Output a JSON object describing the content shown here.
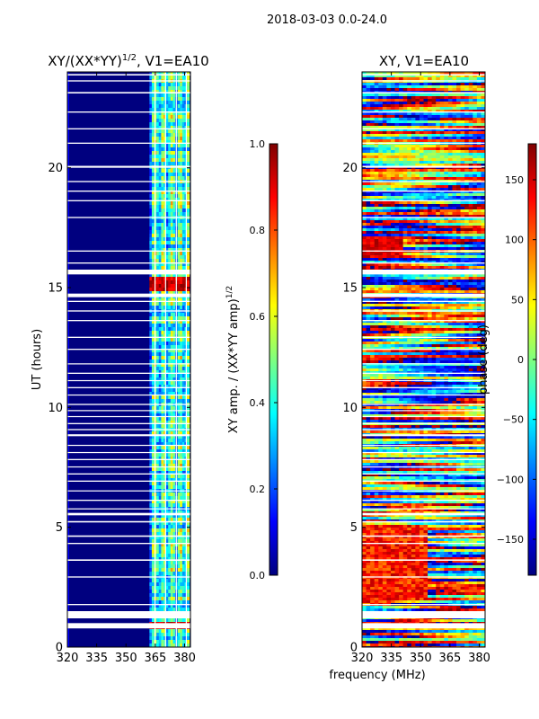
{
  "suptitle": "2018-03-03 0.0-24.0",
  "colors": {
    "jet": [
      "#00007f",
      "#0000ff",
      "#007fff",
      "#00ffff",
      "#7fff7f",
      "#ffff00",
      "#ff7f00",
      "#ff0000",
      "#7f0000"
    ],
    "gap": "#ffffff"
  },
  "chart_data": [
    {
      "type": "heatmap",
      "title_main": "XY/(XX*YY)",
      "title_sup": "1/2",
      "title_rest": ", V1=EA10",
      "xlabel": "",
      "ylabel": "UT (hours)",
      "xlim": [
        320,
        383
      ],
      "ylim": [
        0,
        24
      ],
      "xticks": [
        320,
        335,
        350,
        365,
        380
      ],
      "yticks": [
        0,
        5,
        10,
        15,
        20
      ],
      "description_values": "normalized XY amplitude: ~0.0-0.1 below 360 MHz, bright 0.3-1.0 stripes between 360-380 MHz; flagged rows near 1.2-1.5 h and 14.8-15.5 h",
      "colorbar": {
        "label_main": "XY amp. / (XX*YY amp)",
        "label_sup": "1/2",
        "range": [
          0.0,
          1.0
        ],
        "ticks": [
          0.0,
          0.2,
          0.4,
          0.6,
          0.8,
          1.0
        ],
        "tick_labels": [
          "0.0",
          "0.2",
          "0.4",
          "0.6",
          "0.8",
          "1.0"
        ]
      }
    },
    {
      "type": "heatmap",
      "title": "XY, V1=EA10",
      "xlabel": "frequency (MHz)",
      "ylabel": "",
      "xlim": [
        320,
        383
      ],
      "ylim": [
        0,
        24
      ],
      "xticks": [
        320,
        335,
        350,
        365,
        380
      ],
      "yticks": [
        0,
        5,
        10,
        15,
        20
      ],
      "colorbar": {
        "label": "phase (deg)",
        "range": [
          -180,
          180
        ],
        "ticks": [
          -150,
          -100,
          -50,
          0,
          50,
          100,
          150
        ],
        "tick_labels": [
          "−150",
          "−100",
          "−50",
          "0",
          "50",
          "100",
          "150"
        ]
      }
    }
  ]
}
